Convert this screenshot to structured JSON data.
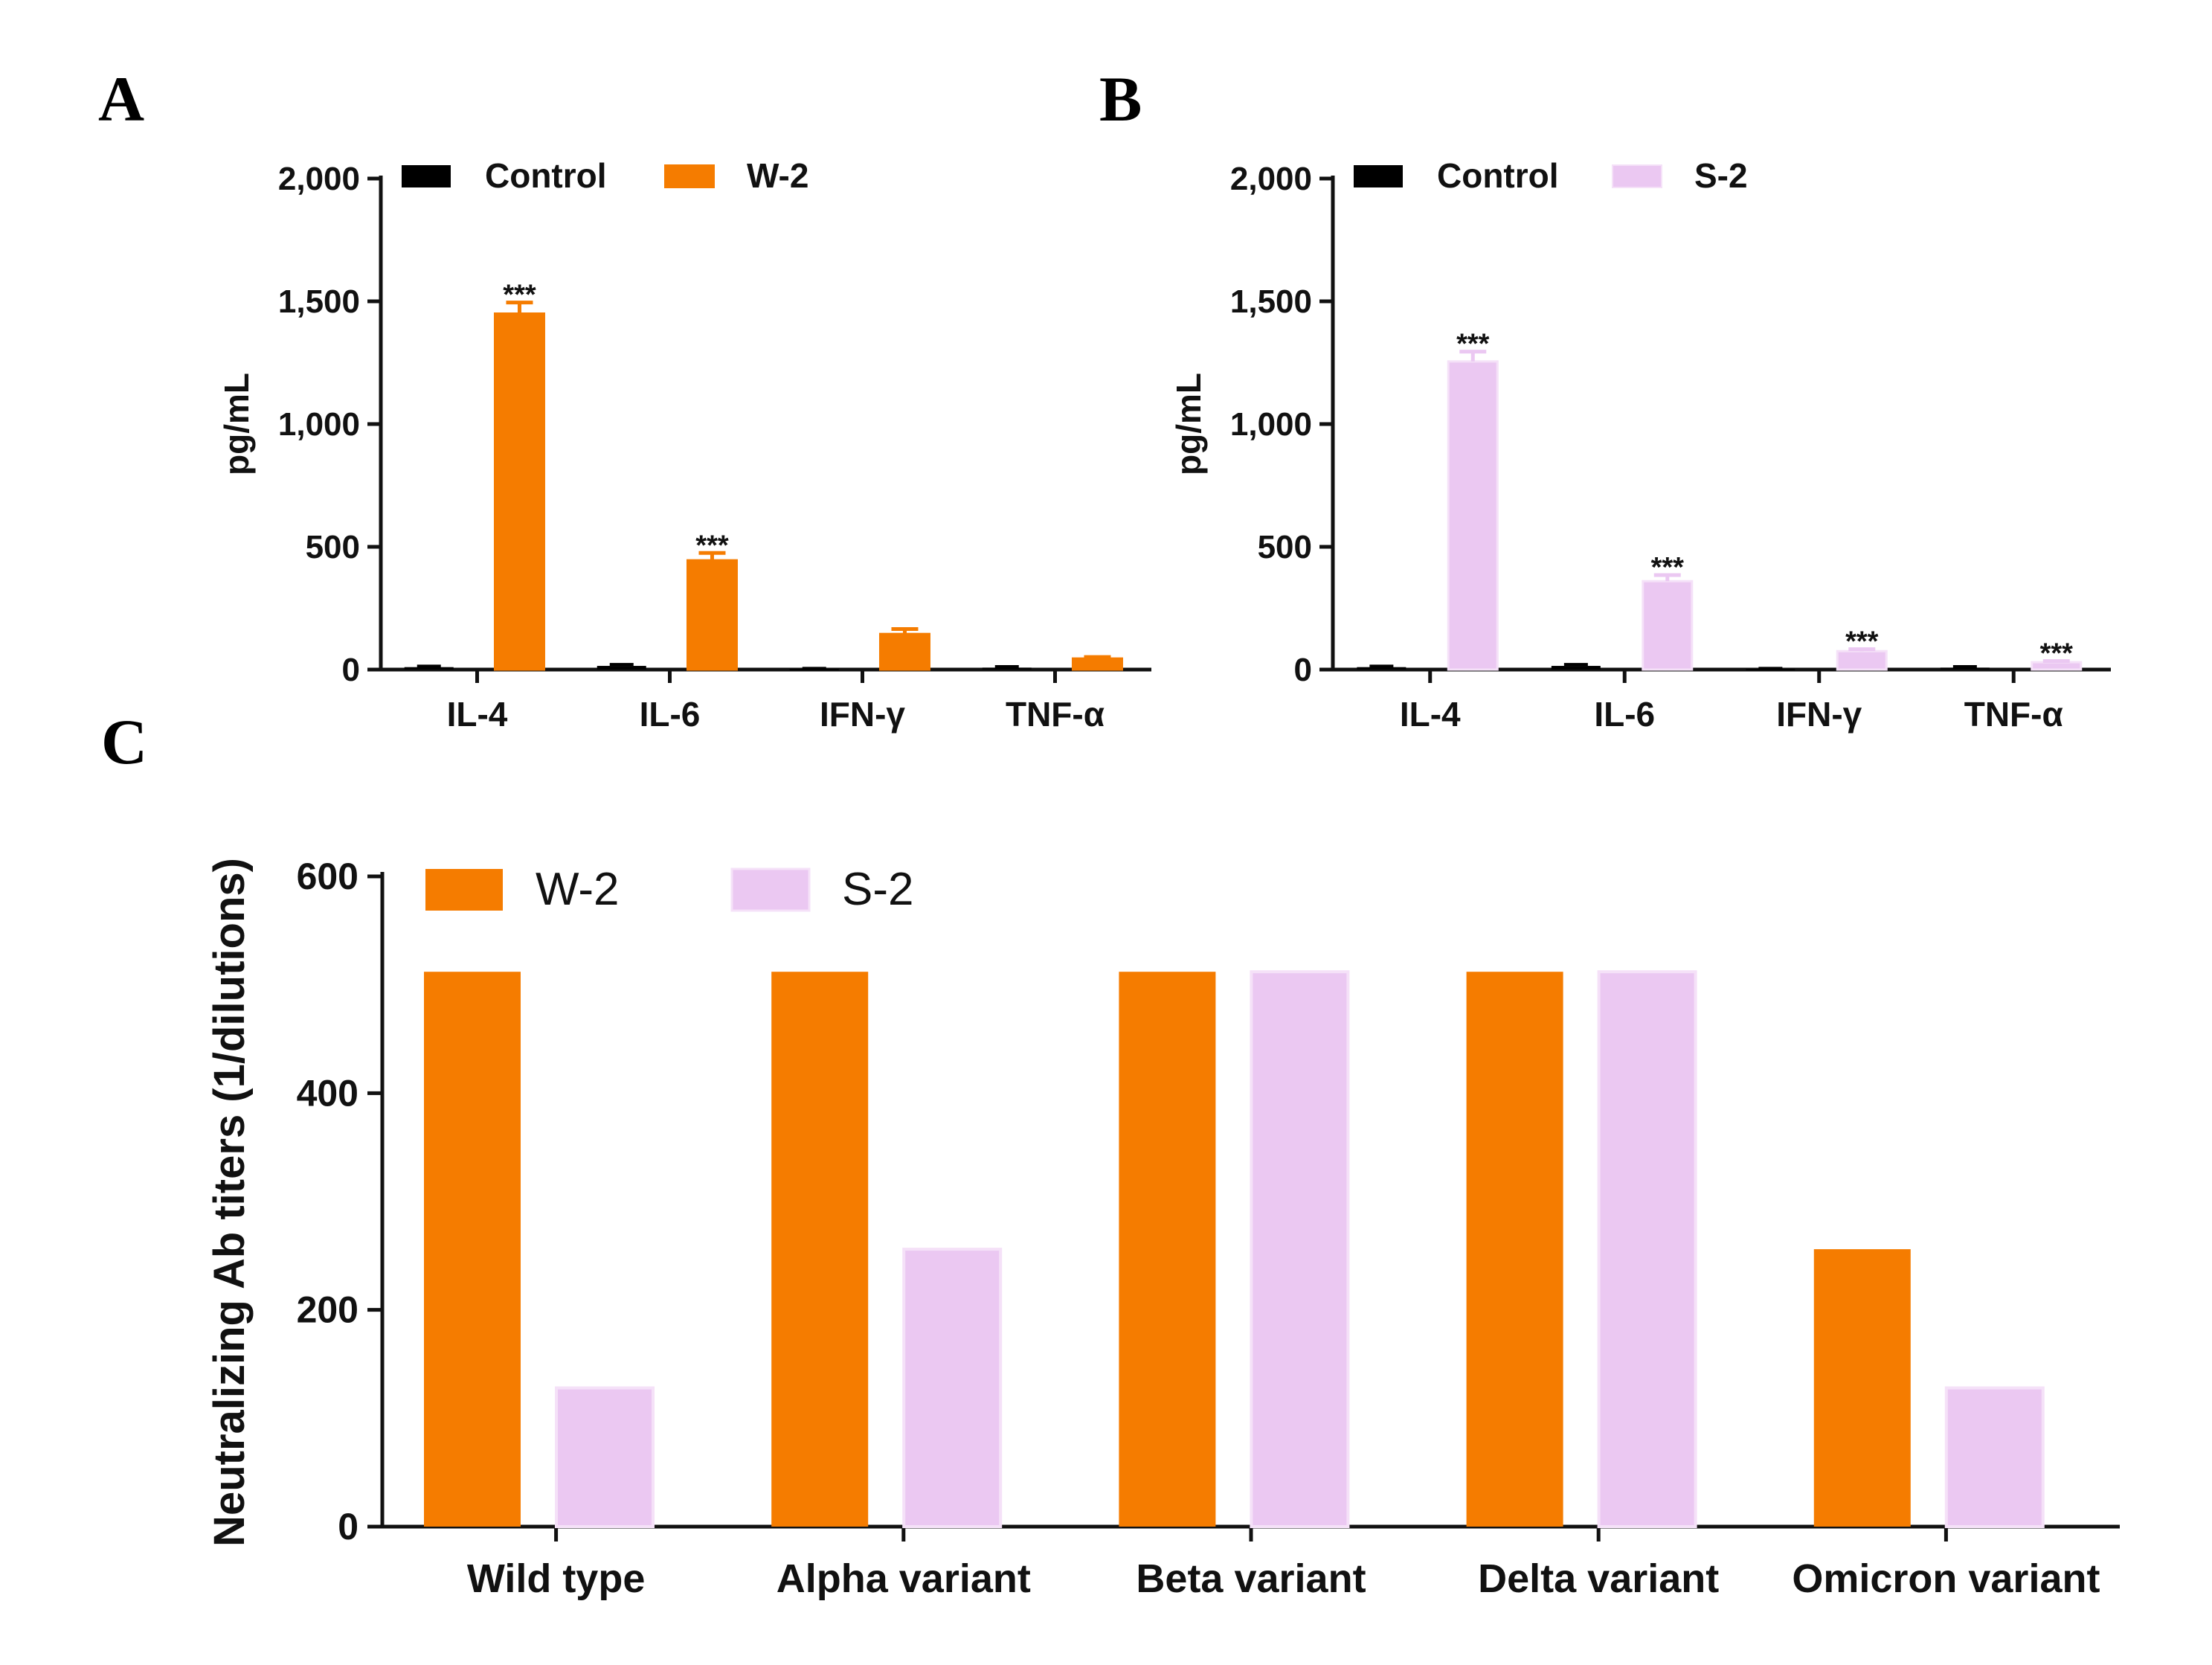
{
  "panels": {
    "a": {
      "letter": "A"
    },
    "b": {
      "letter": "B"
    },
    "c": {
      "letter": "C"
    }
  },
  "colors": {
    "control": "#000000",
    "w2": "#f57c00",
    "s2": "#ebc8f2",
    "s2_edge": "#f5e1f8"
  },
  "chart_data": [
    {
      "id": "A",
      "type": "bar",
      "title": "",
      "categories": [
        "IL-4",
        "IL-6",
        "IFN-γ",
        "TNF-α"
      ],
      "series": [
        {
          "name": "Control",
          "values": [
            10,
            15,
            3,
            8
          ],
          "errors": [
            4,
            6,
            2,
            4
          ]
        },
        {
          "name": "W-2",
          "values": [
            1450,
            445,
            145,
            45
          ],
          "errors": [
            45,
            30,
            20,
            6
          ]
        }
      ],
      "significance": [
        "***",
        "***",
        "",
        ""
      ],
      "xlabel": "",
      "ylabel": "pg/mL",
      "ylim": [
        0,
        2000
      ],
      "yticks": [
        "0",
        "500",
        "1,000",
        "1,500",
        "2,000"
      ],
      "ytick_values": [
        0,
        500,
        1000,
        1500,
        2000
      ],
      "legend": "top-left"
    },
    {
      "id": "B",
      "type": "bar",
      "title": "",
      "categories": [
        "IL-4",
        "IL-6",
        "IFN-γ",
        "TNF-α"
      ],
      "series": [
        {
          "name": "Control",
          "values": [
            10,
            15,
            3,
            8
          ],
          "errors": [
            4,
            6,
            2,
            4
          ]
        },
        {
          "name": "S-2",
          "values": [
            1255,
            360,
            75,
            30
          ],
          "errors": [
            40,
            25,
            8,
            5
          ]
        }
      ],
      "significance": [
        "***",
        "***",
        "***",
        "***"
      ],
      "xlabel": "",
      "ylabel": "pg/mL",
      "ylim": [
        0,
        2000
      ],
      "yticks": [
        "0",
        "500",
        "1,000",
        "1,500",
        "2,000"
      ],
      "ytick_values": [
        0,
        500,
        1000,
        1500,
        2000
      ],
      "legend": "top-left"
    },
    {
      "id": "C",
      "type": "bar",
      "title": "",
      "categories": [
        "Wild type",
        "Alpha variant",
        "Beta variant",
        "Delta variant",
        "Omicron variant"
      ],
      "series": [
        {
          "name": "W-2",
          "values": [
            512,
            512,
            512,
            512,
            256
          ]
        },
        {
          "name": "S-2",
          "values": [
            128,
            256,
            512,
            512,
            128
          ]
        }
      ],
      "xlabel": "",
      "ylabel": "Neutralizing Ab titers (1/dilutions)",
      "ylim": [
        0,
        600
      ],
      "yticks": [
        "0",
        "200",
        "400",
        "600"
      ],
      "ytick_values": [
        0,
        200,
        400,
        600
      ],
      "legend": "top-left"
    }
  ]
}
